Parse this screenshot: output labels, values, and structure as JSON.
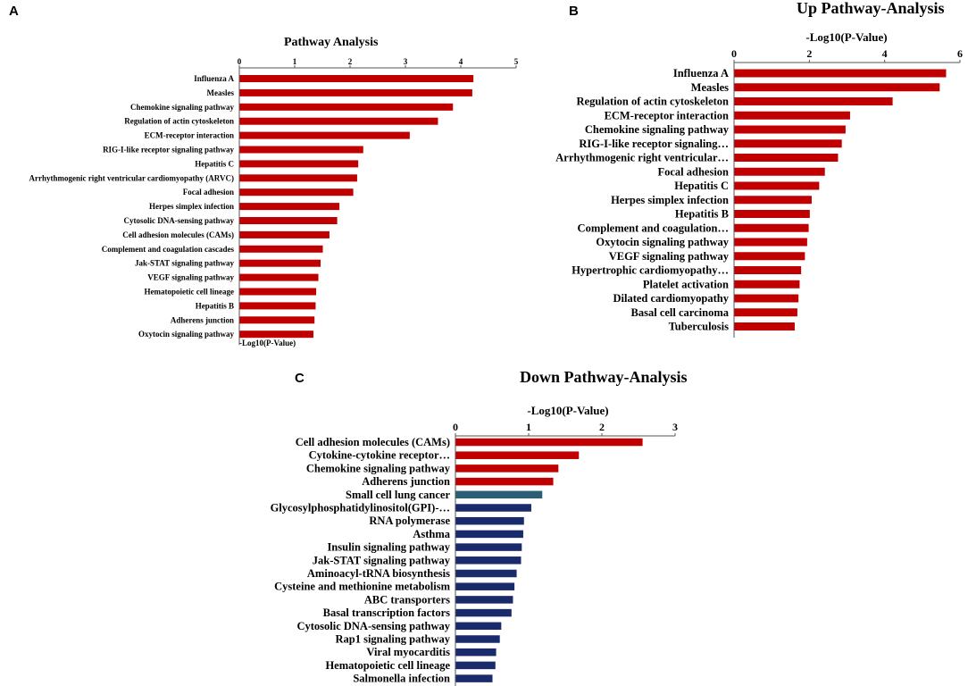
{
  "chart_data": [
    {
      "panel": "A",
      "type": "bar",
      "orientation": "horizontal",
      "title": "Pathway Analysis",
      "xlabel": "-Log10(P-Value)",
      "ylabel": "",
      "xlim": [
        0,
        5
      ],
      "ticks": [
        "0",
        "1",
        "2",
        "3",
        "4",
        "5"
      ],
      "grid": false,
      "categories": [
        "Influenza A",
        "Measles",
        "Chemokine signaling pathway",
        "Regulation of actin cytoskeleton",
        "ECM-receptor interaction",
        "RIG-I-like receptor signaling pathway",
        "Hepatitis C",
        "Arrhythmogenic right ventricular cardiomyopathy (ARVC)",
        "Focal adhesion",
        "Herpes simplex infection",
        "Cytosolic DNA-sensing pathway",
        "Cell adhesion molecules (CAMs)",
        "Complement and coagulation cascades",
        "Jak-STAT signaling pathway",
        "VEGF signaling pathway",
        "Hematopoietic cell lineage",
        "Hepatitis B",
        "Adherens junction",
        "Oxytocin signaling pathway"
      ],
      "values": [
        4.22,
        4.2,
        3.85,
        3.58,
        3.07,
        2.23,
        2.14,
        2.12,
        2.05,
        1.8,
        1.76,
        1.62,
        1.5,
        1.46,
        1.42,
        1.38,
        1.37,
        1.35,
        1.33
      ],
      "colors": [
        "#c00000",
        "#c00000",
        "#c00000",
        "#c00000",
        "#c00000",
        "#c00000",
        "#c00000",
        "#c00000",
        "#c00000",
        "#c00000",
        "#c00000",
        "#c00000",
        "#c00000",
        "#c00000",
        "#c00000",
        "#c00000",
        "#c00000",
        "#c00000",
        "#c00000"
      ]
    },
    {
      "panel": "B",
      "type": "bar",
      "orientation": "horizontal",
      "title": "Up Pathway-Analysis",
      "xlabel": "-Log10(P-Value)",
      "ylabel": "",
      "xlim": [
        0,
        6
      ],
      "ticks": [
        "0",
        "2",
        "4",
        "6"
      ],
      "grid": false,
      "categories": [
        "Influenza A",
        "Measles",
        "Regulation of actin cytoskeleton",
        "ECM-receptor interaction",
        "Chemokine signaling pathway",
        "RIG-I-like receptor signaling…",
        "Arrhythmogenic right ventricular…",
        "Focal adhesion",
        "Hepatitis C",
        "Herpes simplex infection",
        "Hepatitis B",
        "Complement and coagulation…",
        "Oxytocin signaling pathway",
        "VEGF signaling pathway",
        "Hypertrophic cardiomyopathy…",
        "Platelet activation",
        "Dilated cardiomyopathy",
        "Basal cell carcinoma",
        "Tuberculosis"
      ],
      "values": [
        5.62,
        5.45,
        4.2,
        3.07,
        2.95,
        2.85,
        2.75,
        2.4,
        2.25,
        2.05,
        2.0,
        1.97,
        1.93,
        1.87,
        1.77,
        1.73,
        1.7,
        1.67,
        1.6
      ],
      "colors": [
        "#c00000",
        "#c00000",
        "#c00000",
        "#c00000",
        "#c00000",
        "#c00000",
        "#c00000",
        "#c00000",
        "#c00000",
        "#c00000",
        "#c00000",
        "#c00000",
        "#c00000",
        "#c00000",
        "#c00000",
        "#c00000",
        "#c00000",
        "#c00000",
        "#c00000"
      ]
    },
    {
      "panel": "C",
      "type": "bar",
      "orientation": "horizontal",
      "title": "Down Pathway-Analysis",
      "xlabel": "-Log10(P-Value)",
      "ylabel": "",
      "xlim": [
        0,
        3
      ],
      "ticks": [
        "0",
        "1",
        "2",
        "3"
      ],
      "grid": false,
      "categories": [
        "Cell adhesion molecules (CAMs)",
        "Cytokine-cytokine receptor…",
        "Chemokine signaling pathway",
        "Adherens junction",
        "Small cell lung cancer",
        "Glycosylphosphatidylinositol(GPI)-…",
        "RNA polymerase",
        "Asthma",
        "Insulin signaling pathway",
        "Jak-STAT signaling pathway",
        "Aminoacyl-tRNA biosynthesis",
        "Cysteine and methionine metabolism",
        "ABC transporters",
        "Basal transcription factors",
        "Cytosolic DNA-sensing pathway",
        "Rap1 signaling pathway",
        "Viral myocarditis",
        "Hematopoietic cell lineage",
        "Salmonella infection"
      ],
      "values": [
        2.55,
        1.68,
        1.4,
        1.33,
        1.18,
        1.03,
        0.93,
        0.92,
        0.9,
        0.89,
        0.83,
        0.8,
        0.78,
        0.76,
        0.62,
        0.6,
        0.55,
        0.54,
        0.5
      ],
      "colors": [
        "#c00000",
        "#c00000",
        "#c00000",
        "#c00000",
        "#2c5f75",
        "#1a2b6b",
        "#1a2b6b",
        "#1a2b6b",
        "#1a2b6b",
        "#1a2b6b",
        "#1a2b6b",
        "#1a2b6b",
        "#1a2b6b",
        "#1a2b6b",
        "#1a2b6b",
        "#1a2b6b",
        "#1a2b6b",
        "#1a2b6b",
        "#1a2b6b"
      ]
    }
  ]
}
